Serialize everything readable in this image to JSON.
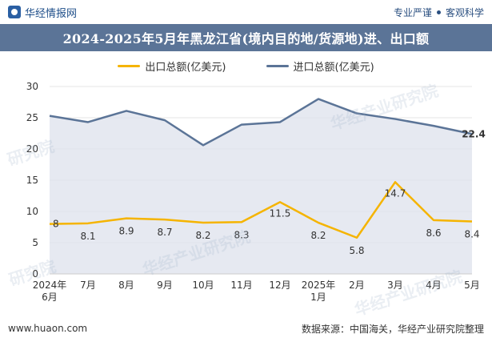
{
  "header": {
    "brand": "华经情报网",
    "tag1": "专业严谨",
    "tag2": "客观科学"
  },
  "title": "2024-2025年5月年黑龙江省(境内目的地/货源地)进、出口额",
  "footer": {
    "website": "www.huaon.com",
    "source": "数据来源：中国海关，华经产业研究院整理"
  },
  "watermarks": [
    "华经产业研究院",
    "华经产业研究院",
    "华经产业研究院",
    "研究院",
    "研究院"
  ],
  "colors": {
    "export_line": "#f5b400",
    "import_line": "#5b7497",
    "import_fill": "#dde2ec",
    "title_band": "#5b7497",
    "grid": "#e6e6e6"
  },
  "chart_data": {
    "type": "area",
    "categories": [
      [
        "2024年",
        "6月"
      ],
      [
        "7月"
      ],
      [
        "8月"
      ],
      [
        "9月"
      ],
      [
        "10月"
      ],
      [
        "11月"
      ],
      [
        "12月"
      ],
      [
        "2025年",
        "1月"
      ],
      [
        "2月"
      ],
      [
        "3月"
      ],
      [
        "4月"
      ],
      [
        "5月"
      ]
    ],
    "ylim": [
      0,
      30
    ],
    "yticks": [
      0,
      5,
      10,
      15,
      20,
      25,
      30
    ],
    "grid": true,
    "legend_position": "top-center",
    "series": [
      {
        "name": "出口总额(亿美元)",
        "key": "export",
        "type": "line",
        "values": [
          8,
          8.1,
          8.9,
          8.7,
          8.2,
          8.3,
          11.5,
          8.2,
          5.8,
          14.7,
          8.6,
          8.4
        ],
        "labels": [
          "8",
          "8.1",
          "8.9",
          "8.7",
          "8.2",
          "8.3",
          "11.5",
          "8.2",
          "5.8",
          "14.7",
          "8.6",
          "8.4"
        ]
      },
      {
        "name": "进口总额(亿美元)",
        "key": "import",
        "type": "area",
        "values": [
          25.3,
          24.3,
          26.1,
          24.6,
          20.6,
          23.9,
          24.3,
          28.0,
          25.7,
          24.8,
          23.7,
          22.4
        ],
        "labels": [
          "",
          "",
          "",
          "",
          "",
          "",
          "",
          "",
          "",
          "",
          "",
          "22.4"
        ]
      }
    ]
  }
}
